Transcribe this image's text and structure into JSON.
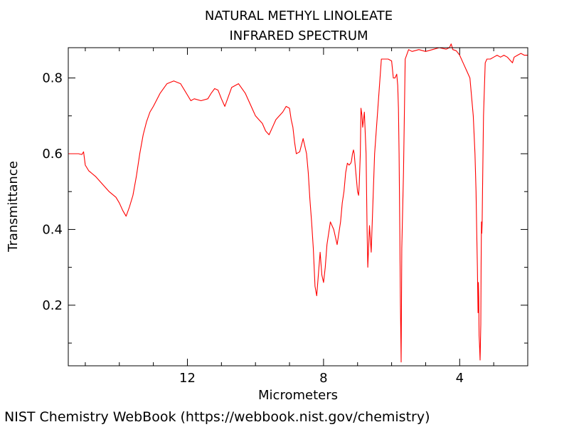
{
  "chart_data": {
    "type": "line",
    "title": "NATURAL METHYL LINOLEATE",
    "subtitle": "INFRARED SPECTRUM",
    "xlabel": "Micrometers",
    "ylabel": "Transmittance",
    "xlim": [
      15.5,
      2.0
    ],
    "ylim": [
      0.04,
      0.88
    ],
    "x_major_ticks": [
      12,
      8,
      4
    ],
    "x_minor_ticks": [
      15,
      14,
      13,
      11,
      10,
      9,
      7,
      6,
      5,
      3
    ],
    "y_major_ticks": [
      0.2,
      0.4,
      0.6,
      0.8
    ],
    "y_minor_ticks": [
      0.1,
      0.3,
      0.5,
      0.7
    ],
    "grid": false,
    "legend": "none",
    "series": [
      {
        "color": "#ff0000",
        "x": [
          15.5,
          15.2,
          15.1,
          15.05,
          15.0,
          14.9,
          14.7,
          14.5,
          14.3,
          14.1,
          14.0,
          13.9,
          13.8,
          13.7,
          13.6,
          13.5,
          13.4,
          13.3,
          13.2,
          13.1,
          13.0,
          12.8,
          12.6,
          12.4,
          12.2,
          12.0,
          11.9,
          11.8,
          11.6,
          11.4,
          11.3,
          11.2,
          11.1,
          11.0,
          10.9,
          10.8,
          10.7,
          10.5,
          10.3,
          10.1,
          10.0,
          9.9,
          9.8,
          9.7,
          9.6,
          9.5,
          9.4,
          9.3,
          9.2,
          9.1,
          9.0,
          8.95,
          8.9,
          8.85,
          8.8,
          8.7,
          8.6,
          8.5,
          8.45,
          8.4,
          8.35,
          8.3,
          8.25,
          8.2,
          8.1,
          8.05,
          8.0,
          7.95,
          7.9,
          7.8,
          7.7,
          7.6,
          7.5,
          7.45,
          7.4,
          7.35,
          7.3,
          7.25,
          7.2,
          7.18,
          7.15,
          7.12,
          7.1,
          7.05,
          7.0,
          6.97,
          6.95,
          6.92,
          6.9,
          6.87,
          6.85,
          6.8,
          6.75,
          6.72,
          6.7,
          6.65,
          6.6,
          6.5,
          6.3,
          6.1,
          6.0,
          5.95,
          5.9,
          5.85,
          5.82,
          5.8,
          5.78,
          5.76,
          5.74,
          5.72,
          5.7,
          5.65,
          5.6,
          5.5,
          5.4,
          5.2,
          5.0,
          4.8,
          4.6,
          4.5,
          4.4,
          4.3,
          4.25,
          4.2,
          4.1,
          4.0,
          3.9,
          3.8,
          3.7,
          3.6,
          3.55,
          3.52,
          3.5,
          3.48,
          3.46,
          3.45,
          3.44,
          3.43,
          3.42,
          3.4,
          3.38,
          3.37,
          3.36,
          3.35,
          3.34,
          3.33,
          3.3,
          3.25,
          3.2,
          3.1,
          3.0,
          2.9,
          2.8,
          2.7,
          2.6,
          2.5,
          2.45,
          2.4,
          2.3,
          2.2,
          2.1,
          2.0
        ],
        "y": [
          0.6,
          0.6,
          0.598,
          0.605,
          0.57,
          0.555,
          0.54,
          0.52,
          0.5,
          0.485,
          0.47,
          0.45,
          0.435,
          0.46,
          0.49,
          0.54,
          0.6,
          0.65,
          0.685,
          0.71,
          0.725,
          0.76,
          0.785,
          0.792,
          0.785,
          0.755,
          0.74,
          0.745,
          0.74,
          0.745,
          0.76,
          0.772,
          0.768,
          0.745,
          0.725,
          0.75,
          0.775,
          0.785,
          0.76,
          0.72,
          0.7,
          0.69,
          0.68,
          0.66,
          0.65,
          0.67,
          0.69,
          0.7,
          0.71,
          0.725,
          0.72,
          0.69,
          0.67,
          0.63,
          0.6,
          0.605,
          0.64,
          0.6,
          0.55,
          0.48,
          0.42,
          0.35,
          0.25,
          0.225,
          0.34,
          0.28,
          0.26,
          0.3,
          0.36,
          0.42,
          0.4,
          0.36,
          0.42,
          0.47,
          0.5,
          0.55,
          0.575,
          0.57,
          0.575,
          0.58,
          0.6,
          0.61,
          0.6,
          0.55,
          0.5,
          0.49,
          0.52,
          0.6,
          0.72,
          0.7,
          0.67,
          0.71,
          0.6,
          0.4,
          0.3,
          0.41,
          0.34,
          0.6,
          0.85,
          0.85,
          0.845,
          0.8,
          0.8,
          0.81,
          0.78,
          0.72,
          0.6,
          0.4,
          0.2,
          0.05,
          0.35,
          0.55,
          0.85,
          0.875,
          0.87,
          0.875,
          0.87,
          0.875,
          0.88,
          0.878,
          0.876,
          0.88,
          0.89,
          0.875,
          0.872,
          0.86,
          0.84,
          0.82,
          0.8,
          0.7,
          0.6,
          0.5,
          0.4,
          0.3,
          0.18,
          0.26,
          0.22,
          0.12,
          0.1,
          0.055,
          0.15,
          0.3,
          0.42,
          0.39,
          0.42,
          0.5,
          0.7,
          0.84,
          0.85,
          0.85,
          0.855,
          0.86,
          0.855,
          0.86,
          0.855,
          0.845,
          0.84,
          0.855,
          0.86,
          0.865,
          0.86,
          0.86
        ]
      }
    ]
  },
  "footer": {
    "credit": "NIST Chemistry WebBook (https://webbook.nist.gov/chemistry)"
  }
}
